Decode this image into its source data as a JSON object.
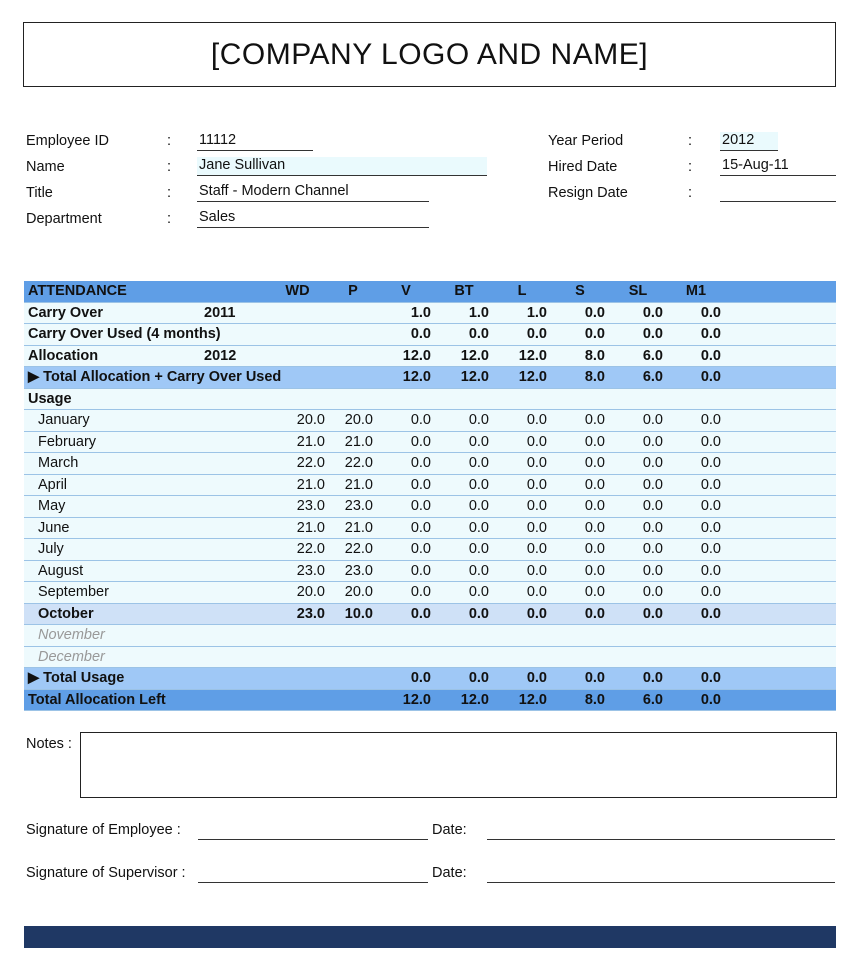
{
  "header": {
    "logo_text": "[COMPANY LOGO AND NAME]"
  },
  "info": {
    "left": [
      {
        "label": "Employee ID",
        "value": "11112"
      },
      {
        "label": "Name",
        "value": "Jane Sullivan"
      },
      {
        "label": "Title",
        "value": "Staff - Modern Channel"
      },
      {
        "label": "Department",
        "value": "Sales"
      }
    ],
    "right": [
      {
        "label": "Year Period",
        "value": "2012"
      },
      {
        "label": "Hired Date",
        "value": "15-Aug-11"
      },
      {
        "label": "Resign Date",
        "value": ""
      }
    ],
    "colon": ":"
  },
  "attendance": {
    "columns": [
      "ATTENDANCE",
      "",
      "WD",
      "P",
      "V",
      "BT",
      "L",
      "S",
      "SL",
      "M1"
    ],
    "rows": [
      {
        "type": "bold",
        "cells": [
          "Carry Over",
          "2011",
          "",
          "",
          "1.0",
          "1.0",
          "1.0",
          "0.0",
          "0.0",
          "0.0"
        ]
      },
      {
        "type": "bold",
        "cells": [
          "Carry Over Used (4 months)",
          "",
          "",
          "",
          "0.0",
          "0.0",
          "0.0",
          "0.0",
          "0.0",
          "0.0"
        ]
      },
      {
        "type": "bold",
        "cells": [
          "Allocation",
          "2012",
          "",
          "",
          "12.0",
          "12.0",
          "12.0",
          "8.0",
          "6.0",
          "0.0"
        ]
      },
      {
        "type": "tot",
        "cells": [
          "▶ Total Allocation + Carry Over Used",
          "",
          "",
          "",
          "12.0",
          "12.0",
          "12.0",
          "8.0",
          "6.0",
          "0.0"
        ]
      },
      {
        "type": "bold",
        "cells": [
          "Usage",
          "",
          "",
          "",
          "",
          "",
          "",
          "",
          "",
          ""
        ]
      },
      {
        "type": "month",
        "cells": [
          "January",
          "",
          "20.0",
          "20.0",
          "0.0",
          "0.0",
          "0.0",
          "0.0",
          "0.0",
          "0.0"
        ]
      },
      {
        "type": "month",
        "cells": [
          "February",
          "",
          "21.0",
          "21.0",
          "0.0",
          "0.0",
          "0.0",
          "0.0",
          "0.0",
          "0.0"
        ]
      },
      {
        "type": "month",
        "cells": [
          "March",
          "",
          "22.0",
          "22.0",
          "0.0",
          "0.0",
          "0.0",
          "0.0",
          "0.0",
          "0.0"
        ]
      },
      {
        "type": "month",
        "cells": [
          "April",
          "",
          "21.0",
          "21.0",
          "0.0",
          "0.0",
          "0.0",
          "0.0",
          "0.0",
          "0.0"
        ]
      },
      {
        "type": "month",
        "cells": [
          "May",
          "",
          "23.0",
          "23.0",
          "0.0",
          "0.0",
          "0.0",
          "0.0",
          "0.0",
          "0.0"
        ]
      },
      {
        "type": "month",
        "cells": [
          "June",
          "",
          "21.0",
          "21.0",
          "0.0",
          "0.0",
          "0.0",
          "0.0",
          "0.0",
          "0.0"
        ]
      },
      {
        "type": "month",
        "cells": [
          "July",
          "",
          "22.0",
          "22.0",
          "0.0",
          "0.0",
          "0.0",
          "0.0",
          "0.0",
          "0.0"
        ]
      },
      {
        "type": "month",
        "cells": [
          "August",
          "",
          "23.0",
          "23.0",
          "0.0",
          "0.0",
          "0.0",
          "0.0",
          "0.0",
          "0.0"
        ]
      },
      {
        "type": "month",
        "cells": [
          "September",
          "",
          "20.0",
          "20.0",
          "0.0",
          "0.0",
          "0.0",
          "0.0",
          "0.0",
          "0.0"
        ]
      },
      {
        "type": "cur",
        "cells": [
          "October",
          "",
          "23.0",
          "10.0",
          "0.0",
          "0.0",
          "0.0",
          "0.0",
          "0.0",
          "0.0"
        ]
      },
      {
        "type": "fut",
        "cells": [
          "November",
          "",
          "",
          "",
          "",
          "",
          "",
          "",
          "",
          ""
        ]
      },
      {
        "type": "fut",
        "cells": [
          "December",
          "",
          "",
          "",
          "",
          "",
          "",
          "",
          "",
          ""
        ]
      },
      {
        "type": "tot",
        "cells": [
          "▶ Total Usage",
          "",
          "",
          "",
          "0.0",
          "0.0",
          "0.0",
          "0.0",
          "0.0",
          "0.0"
        ]
      },
      {
        "type": "left",
        "cells": [
          "Total Allocation Left",
          "",
          "",
          "",
          "12.0",
          "12.0",
          "12.0",
          "8.0",
          "6.0",
          "0.0"
        ]
      }
    ]
  },
  "notes": {
    "label": "Notes :"
  },
  "signatures": {
    "employee": "Signature of Employee :",
    "supervisor": "Signature of Supervisor :",
    "date": "Date:"
  },
  "colors": {
    "header": "#5f9ee6",
    "total": "#9fc8f6",
    "current": "#cfe1f7",
    "row": "#eefafd",
    "footer": "#1f3864"
  }
}
